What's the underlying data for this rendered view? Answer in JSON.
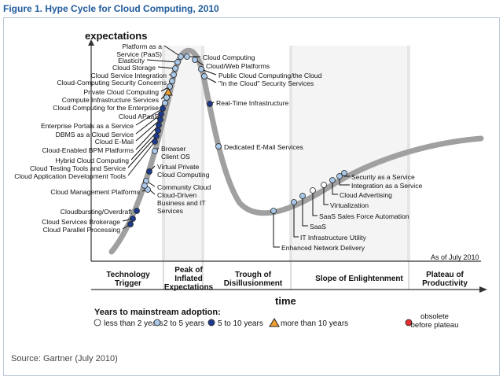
{
  "title": "Figure 1. Hype Cycle for Cloud Computing, 2010",
  "y_axis_label": "expectations",
  "x_axis_label": "time",
  "as_of": "As of July 2010",
  "source": "Source: Gartner (July 2010)",
  "phases": [
    {
      "id": "trigger",
      "lines": [
        "Technology",
        "Trigger"
      ]
    },
    {
      "id": "peak",
      "lines": [
        "Peak of",
        "Inflated",
        "Expectations"
      ]
    },
    {
      "id": "trough",
      "lines": [
        "Trough of",
        "Disillusionment"
      ]
    },
    {
      "id": "slope",
      "lines": [
        "Slope of Enlightenment"
      ]
    },
    {
      "id": "plateau",
      "lines": [
        "Plateau of",
        "Productivity"
      ]
    }
  ],
  "legend": {
    "heading": "Years to mainstream adoption:",
    "items": [
      {
        "id": "lt2",
        "label": "less than 2 years",
        "shape": "circle",
        "color": "#ffffff"
      },
      {
        "id": "2to5",
        "label": "2 to 5 years",
        "shape": "circle",
        "color": "#a9c8e8"
      },
      {
        "id": "5to10",
        "label": "5 to 10 years",
        "shape": "circle",
        "color": "#1e3a8a"
      },
      {
        "id": "gt10",
        "label": "more than 10 years",
        "shape": "triangle",
        "color": "#f0a030"
      },
      {
        "id": "obs",
        "label": "obsolete before plateau",
        "lines": [
          "obsolete",
          "before plateau"
        ],
        "shape": "circle-x",
        "color": "#e03030"
      }
    ]
  },
  "technologies": [
    {
      "name": "Platform as a Service (PaaS)",
      "lines": [
        "Platform as a",
        "Service (PaaS)"
      ],
      "cat": "2to5"
    },
    {
      "name": "Elasticity",
      "cat": "2to5"
    },
    {
      "name": "Cloud Storage",
      "cat": "2to5"
    },
    {
      "name": "Cloud Service Integration",
      "cat": "2to5"
    },
    {
      "name": "Cloud-Computing Security Concerns",
      "cat": "2to5"
    },
    {
      "name": "Private Cloud Computing",
      "cat": "2to5"
    },
    {
      "name": "Compute Infrastructure Services",
      "cat": "gt10"
    },
    {
      "name": "Cloud Computing for the Enterprise",
      "cat": "2to5"
    },
    {
      "name": "Cloud APaaS",
      "cat": "2to5"
    },
    {
      "name": "Enterprise Portals as a Service",
      "cat": "5to10"
    },
    {
      "name": "DBMS as a Cloud Service",
      "cat": "5to10"
    },
    {
      "name": "Cloud E-Mail",
      "cat": "5to10"
    },
    {
      "name": "Cloud-Enabled BPM Platforms",
      "cat": "5to10"
    },
    {
      "name": "Hybrid Cloud Computing",
      "cat": "5to10"
    },
    {
      "name": "Cloud Testing Tools and Service",
      "cat": "5to10"
    },
    {
      "name": "Cloud Application Development Tools",
      "cat": "5to10"
    },
    {
      "name": "Cloud Management Platforms",
      "cat": "2to5"
    },
    {
      "name": "Cloudbursting/Overdraft",
      "cat": "5to10"
    },
    {
      "name": "Cloud Services Brokerage",
      "cat": "5to10"
    },
    {
      "name": "Cloud Parallel Processing",
      "cat": "5to10"
    },
    {
      "name": "Browser Client OS",
      "lines": [
        "Browser",
        "Client OS"
      ],
      "cat": "2to5"
    },
    {
      "name": "Virtual Private Cloud Computing",
      "lines": [
        "Virtual Private",
        "Cloud Computing"
      ],
      "cat": "5to10"
    },
    {
      "name": "Community Cloud",
      "cat": "2to5"
    },
    {
      "name": "Cloud-Driven Business and IT Services",
      "lines": [
        "Cloud-Driven",
        "Business and IT",
        "Services"
      ],
      "cat": "2to5"
    },
    {
      "name": "Cloud Computing",
      "cat": "2to5"
    },
    {
      "name": "Cloud/Web Platforms",
      "cat": "2to5"
    },
    {
      "name": "Public Cloud Computing/the Cloud",
      "cat": "2to5"
    },
    {
      "name": "\"In the Cloud\" Security Services",
      "cat": "2to5"
    },
    {
      "name": "Real-Time Infrastructure",
      "cat": "5to10"
    },
    {
      "name": "Dedicated E-Mail Services",
      "cat": "2to5"
    },
    {
      "name": "Enhanced Network Delivery",
      "cat": "2to5"
    },
    {
      "name": "IT Infrastructure Utility",
      "cat": "2to5"
    },
    {
      "name": "SaaS",
      "cat": "2to5"
    },
    {
      "name": "SaaS Sales Force Automation",
      "cat": "lt2"
    },
    {
      "name": "Virtualization",
      "cat": "lt2"
    },
    {
      "name": "Cloud Advertising",
      "cat": "2to5"
    },
    {
      "name": "Integration as a Service",
      "cat": "2to5"
    },
    {
      "name": "Security as a Service",
      "cat": "2to5"
    }
  ]
}
